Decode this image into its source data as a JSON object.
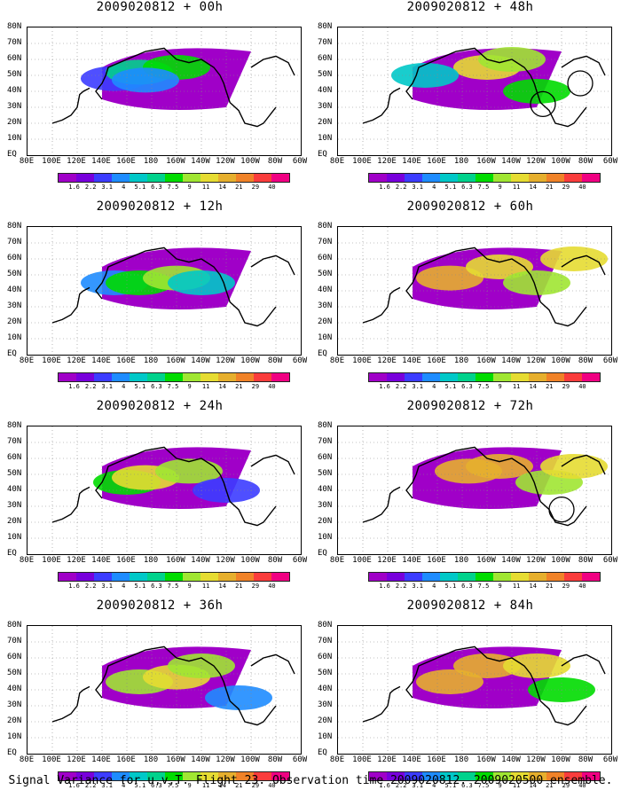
{
  "caption": "Signal Variance for u,v,T. Flight 23. Observation time 2009020812. 2009020500 ensemble.",
  "y_labels": [
    "80N",
    "70N",
    "60N",
    "50N",
    "40N",
    "30N",
    "20N",
    "10N",
    "EQ"
  ],
  "x_labels": [
    "80E",
    "100E",
    "120E",
    "140E",
    "160E",
    "180",
    "160W",
    "140W",
    "120W",
    "100W",
    "80W",
    "60W"
  ],
  "colorbar": {
    "levels": [
      "1.6",
      "2.2",
      "3.1",
      "4",
      "5.1",
      "6.3",
      "7.5",
      "9",
      "11",
      "14",
      "21",
      "29",
      "40"
    ],
    "colors": [
      "#a000c8",
      "#7800dc",
      "#3c3cff",
      "#1e8cff",
      "#00c8c8",
      "#00d28c",
      "#00dc00",
      "#a0e632",
      "#e6dc32",
      "#e6af2d",
      "#f08228",
      "#fa3c3c",
      "#f00082"
    ]
  },
  "panels": [
    {
      "title": "2009020812 + 00h",
      "cells": [
        "170E,45N,#a000c8",
        "150E,48N,#3c3cff",
        "170E,52N,#00d28c",
        "160W,55N,#00dc00",
        "175E,47N,#1e8cff"
      ],
      "circles": []
    },
    {
      "title": "2009020812 + 12h",
      "cells": [
        "150E,45N,#1e8cff",
        "170E,45N,#00dc00",
        "160W,48N,#a0e632",
        "140W,45N,#00c8c8"
      ],
      "circles": []
    },
    {
      "title": "2009020812 + 24h",
      "cells": [
        "160E,45N,#00dc00",
        "175E,48N,#e6dc32",
        "150W,52N,#a0e632",
        "120W,40N,#3c3cff"
      ],
      "circles": []
    },
    {
      "title": "2009020812 + 36h",
      "cells": [
        "170E,45N,#a0e632",
        "160W,48N,#e6dc32",
        "140W,55N,#a0e632",
        "110W,35N,#1e8cff"
      ],
      "circles": []
    },
    {
      "title": "2009020812 + 48h",
      "cells": [
        "160W,55N,#e6dc32",
        "140W,60N,#a0e632",
        "120W,40N,#00dc00",
        "150E,50N,#00c8c8"
      ],
      "circles": [
        "115W,32N",
        "85W,45N"
      ]
    },
    {
      "title": "2009020812 + 60h",
      "cells": [
        "170E,48N,#e6af2d",
        "150W,55N,#e6dc32",
        "120W,45N,#a0e632",
        "90W,60N,#e6dc32"
      ],
      "circles": []
    },
    {
      "title": "2009020812 + 72h",
      "cells": [
        "175W,52N,#e6af2d",
        "150W,55N,#e6af2d",
        "110W,45N,#a0e632",
        "90W,55N,#e6dc32"
      ],
      "circles": [
        "100W,28N"
      ]
    },
    {
      "title": "2009020812 + 84h",
      "cells": [
        "170E,45N,#e6af2d",
        "160W,55N,#e6af2d",
        "120W,55N,#e6dc32",
        "100W,40N,#00dc00"
      ],
      "circles": []
    }
  ]
}
